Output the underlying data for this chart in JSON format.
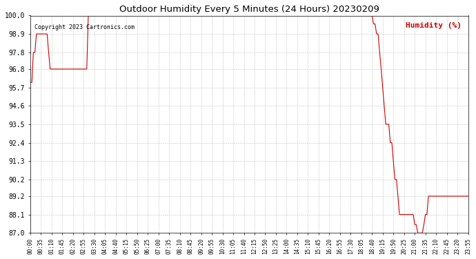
{
  "title": "Outdoor Humidity Every 5 Minutes (24 Hours) 20230209",
  "copyright": "Copyright 2023 Cartronics.com",
  "legend_label": "Humidity (%)",
  "line_color": "#cc0000",
  "legend_color": "#cc0000",
  "background_color": "#ffffff",
  "grid_color": "#aaaaaa",
  "title_color": "#000000",
  "ylim": [
    87.0,
    100.0
  ],
  "yticks": [
    87.0,
    88.1,
    89.2,
    90.2,
    91.3,
    92.4,
    93.5,
    94.6,
    95.7,
    96.8,
    97.8,
    98.9,
    100.0
  ],
  "x_tick_interval": 6,
  "time_points": [
    "00:00",
    "00:05",
    "00:10",
    "00:15",
    "00:20",
    "00:25",
    "00:30",
    "00:35",
    "00:40",
    "00:45",
    "00:50",
    "00:55",
    "01:00",
    "01:05",
    "01:10",
    "01:15",
    "01:20",
    "01:25",
    "01:30",
    "01:35",
    "01:40",
    "01:45",
    "01:50",
    "01:55",
    "02:00",
    "02:05",
    "02:10",
    "02:15",
    "02:20",
    "02:25",
    "02:30",
    "02:35",
    "02:40",
    "02:45",
    "02:50",
    "02:55",
    "03:00",
    "03:05",
    "03:10",
    "03:15",
    "03:20",
    "03:25",
    "03:30",
    "03:35",
    "03:40",
    "03:45",
    "03:50",
    "03:55",
    "04:00",
    "04:05",
    "04:10",
    "04:15",
    "04:20",
    "04:25",
    "04:30",
    "04:35",
    "04:40",
    "04:45",
    "04:50",
    "04:55",
    "05:00",
    "05:05",
    "05:10",
    "05:15",
    "05:20",
    "05:25",
    "05:30",
    "05:35",
    "05:40",
    "05:45",
    "05:50",
    "05:55",
    "06:00",
    "06:05",
    "06:10",
    "06:15",
    "06:20",
    "06:25",
    "06:30",
    "06:35",
    "06:40",
    "06:45",
    "06:50",
    "06:55",
    "07:00",
    "07:05",
    "07:10",
    "07:15",
    "07:20",
    "07:25",
    "07:30",
    "07:35",
    "07:40",
    "07:45",
    "07:50",
    "07:55",
    "08:00",
    "08:05",
    "08:10",
    "08:15",
    "08:20",
    "08:25",
    "08:30",
    "08:35",
    "08:40",
    "08:45",
    "08:50",
    "08:55",
    "09:00",
    "09:05",
    "09:10",
    "09:15",
    "09:20",
    "09:25",
    "09:30",
    "09:35",
    "09:40",
    "09:45",
    "09:50",
    "09:55",
    "10:00",
    "10:05",
    "10:10",
    "10:15",
    "10:20",
    "10:25",
    "10:30",
    "10:35",
    "10:40",
    "10:45",
    "10:50",
    "10:55",
    "11:00",
    "11:05",
    "11:10",
    "11:15",
    "11:20",
    "11:25",
    "11:30",
    "11:35",
    "11:40",
    "11:45",
    "11:50",
    "11:55",
    "12:00",
    "12:05",
    "12:10",
    "12:15",
    "12:20",
    "12:25",
    "12:30",
    "12:35",
    "12:40",
    "12:45",
    "12:50",
    "12:55",
    "13:00",
    "13:05",
    "13:10",
    "13:15",
    "13:20",
    "13:25",
    "13:30",
    "13:35",
    "13:40",
    "13:45",
    "13:50",
    "13:55",
    "14:00",
    "14:05",
    "14:10",
    "14:15",
    "14:20",
    "14:25",
    "14:30",
    "14:35",
    "14:40",
    "14:45",
    "14:50",
    "14:55",
    "15:00",
    "15:05",
    "15:10",
    "15:15",
    "15:20",
    "15:25",
    "15:30",
    "15:35",
    "15:40",
    "15:45",
    "15:50",
    "15:55",
    "16:00",
    "16:05",
    "16:10",
    "16:15",
    "16:20",
    "16:25",
    "16:30",
    "16:35",
    "16:40",
    "16:45",
    "16:50",
    "16:55",
    "17:00",
    "17:05",
    "17:10",
    "17:15",
    "17:20",
    "17:25",
    "17:30",
    "17:35",
    "17:40",
    "17:45",
    "17:50",
    "17:55",
    "18:00",
    "18:05",
    "18:10",
    "18:15",
    "18:20",
    "18:25",
    "18:30",
    "18:35",
    "18:40",
    "18:45",
    "18:50",
    "18:55",
    "19:00",
    "19:05",
    "19:10",
    "19:15",
    "19:20",
    "19:25",
    "19:30",
    "19:35",
    "19:40",
    "19:45",
    "19:50",
    "19:55",
    "20:00",
    "20:05",
    "20:10",
    "20:15",
    "20:20",
    "20:25",
    "20:30",
    "20:35",
    "20:40",
    "20:45",
    "20:50",
    "20:55",
    "21:00",
    "21:05",
    "21:10",
    "21:15",
    "21:20",
    "21:25",
    "21:30",
    "21:35",
    "21:40",
    "21:45",
    "21:50",
    "21:55",
    "22:00",
    "22:05",
    "22:10",
    "22:15",
    "22:20",
    "22:25",
    "22:30",
    "22:35",
    "22:40",
    "22:45",
    "22:50",
    "22:55",
    "23:00",
    "23:05",
    "23:10",
    "23:15",
    "23:20",
    "23:25",
    "23:30",
    "23:35",
    "23:40",
    "23:45",
    "23:50",
    "23:55"
  ],
  "humidity_values": [
    96.0,
    96.0,
    97.8,
    97.8,
    98.9,
    98.9,
    98.9,
    98.9,
    98.9,
    98.9,
    98.9,
    98.9,
    97.8,
    96.8,
    96.8,
    96.8,
    96.8,
    96.8,
    96.8,
    96.8,
    96.8,
    96.8,
    96.8,
    96.8,
    96.8,
    96.8,
    96.8,
    96.8,
    96.8,
    96.8,
    96.8,
    96.8,
    96.8,
    96.8,
    96.8,
    96.8,
    96.8,
    96.8,
    100.0,
    100.0,
    100.0,
    100.0,
    100.0,
    100.0,
    100.0,
    100.0,
    100.0,
    100.0,
    100.0,
    100.0,
    100.0,
    100.0,
    100.0,
    100.0,
    100.0,
    100.0,
    100.0,
    100.0,
    100.0,
    100.0,
    100.0,
    100.0,
    100.0,
    100.0,
    100.0,
    100.0,
    100.0,
    100.0,
    100.0,
    100.0,
    100.0,
    100.0,
    100.0,
    100.0,
    100.0,
    100.0,
    100.0,
    100.0,
    100.0,
    100.0,
    100.0,
    100.0,
    100.0,
    100.0,
    100.0,
    100.0,
    100.0,
    100.0,
    100.0,
    100.0,
    100.0,
    100.0,
    100.0,
    100.0,
    100.0,
    100.0,
    100.0,
    100.0,
    100.0,
    100.0,
    100.0,
    100.0,
    100.0,
    100.0,
    100.0,
    100.0,
    100.0,
    100.0,
    100.0,
    100.0,
    100.0,
    100.0,
    100.0,
    100.0,
    100.0,
    100.0,
    100.0,
    100.0,
    100.0,
    100.0,
    100.0,
    100.0,
    100.0,
    100.0,
    100.0,
    100.0,
    100.0,
    100.0,
    100.0,
    100.0,
    100.0,
    100.0,
    100.0,
    100.0,
    100.0,
    100.0,
    100.0,
    100.0,
    100.0,
    100.0,
    100.0,
    100.0,
    100.0,
    100.0,
    100.0,
    100.0,
    100.0,
    100.0,
    100.0,
    100.0,
    100.0,
    100.0,
    100.0,
    100.0,
    100.0,
    100.0,
    100.0,
    100.0,
    100.0,
    100.0,
    100.0,
    100.0,
    100.0,
    100.0,
    100.0,
    100.0,
    100.0,
    100.0,
    100.0,
    100.0,
    100.0,
    100.0,
    100.0,
    100.0,
    100.0,
    100.0,
    100.0,
    100.0,
    100.0,
    100.0,
    100.0,
    100.0,
    100.0,
    100.0,
    100.0,
    100.0,
    100.0,
    100.0,
    100.0,
    100.0,
    100.0,
    100.0,
    100.0,
    100.0,
    100.0,
    100.0,
    100.0,
    100.0,
    100.0,
    100.0,
    100.0,
    100.0,
    100.0,
    100.0,
    100.0,
    100.0,
    100.0,
    100.0,
    100.0,
    100.0,
    100.0,
    100.0,
    100.0,
    100.0,
    100.0,
    100.0,
    100.0,
    100.0,
    100.0,
    100.0,
    100.0,
    100.0,
    100.0,
    100.0,
    100.0,
    99.5,
    99.5,
    98.9,
    98.9,
    97.8,
    96.8,
    95.7,
    94.6,
    93.5,
    93.5,
    93.5,
    92.4,
    92.4,
    91.3,
    90.2,
    90.2,
    89.2,
    88.1,
    88.1,
    88.1,
    88.1,
    88.1,
    88.1,
    88.1,
    88.1,
    88.1,
    88.1,
    87.5,
    87.5,
    87.0,
    87.0,
    87.0,
    87.0,
    87.5,
    88.1,
    88.1,
    89.2,
    89.2,
    89.2,
    89.2,
    89.2,
    89.2,
    89.2,
    89.2,
    89.2,
    89.2,
    89.2,
    89.2,
    89.2,
    89.2,
    89.2,
    89.2,
    89.2,
    89.2,
    89.2,
    89.2,
    89.2,
    89.2,
    89.2,
    89.2,
    89.2,
    89.2,
    89.2
  ],
  "xtick_labels_to_show": [
    "00:00",
    "00:35",
    "01:10",
    "01:45",
    "02:20",
    "02:55",
    "03:30",
    "04:05",
    "04:40",
    "05:15",
    "05:50",
    "06:25",
    "07:00",
    "07:35",
    "08:10",
    "08:45",
    "09:20",
    "09:55",
    "10:30",
    "11:05",
    "11:40",
    "12:15",
    "12:50",
    "13:25",
    "14:00",
    "14:35",
    "15:10",
    "15:45",
    "16:20",
    "16:55",
    "17:30",
    "18:05",
    "18:40",
    "19:15",
    "19:50",
    "20:25",
    "21:00",
    "21:35",
    "22:10",
    "22:45",
    "23:20",
    "23:55"
  ]
}
